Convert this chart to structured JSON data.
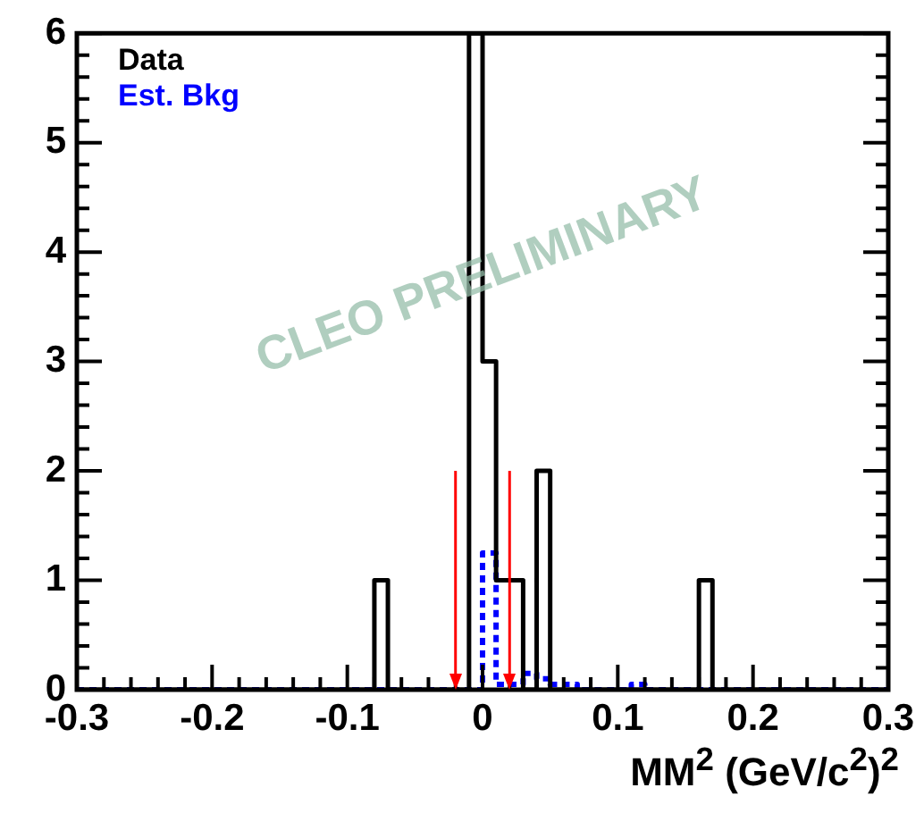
{
  "chart_data": {
    "type": "histogram",
    "xlabel": "MM$^{2}$ (GeV/c$^{2}$)$^{2}$",
    "bins": [
      -0.3,
      -0.29,
      -0.28,
      -0.27,
      -0.26,
      -0.25,
      -0.24,
      -0.23,
      -0.22,
      -0.21,
      -0.2,
      -0.19,
      -0.18,
      -0.17,
      -0.16,
      -0.15,
      -0.14,
      -0.13,
      -0.12,
      -0.11,
      -0.1,
      -0.09,
      -0.08,
      -0.07,
      -0.06,
      -0.05,
      -0.04,
      -0.03,
      -0.02,
      -0.01,
      0,
      0.01,
      0.02,
      0.03,
      0.04,
      0.05,
      0.06,
      0.07,
      0.08,
      0.09,
      0.1,
      0.11,
      0.12,
      0.13,
      0.14,
      0.15,
      0.16,
      0.17,
      0.18,
      0.19,
      0.2,
      0.21,
      0.22,
      0.23,
      0.24,
      0.25,
      0.26,
      0.27,
      0.28,
      0.29,
      0.3
    ],
    "series": [
      {
        "name": "Data",
        "color": "#000000",
        "line_style": "solid",
        "values": [
          0,
          0,
          0,
          0,
          0,
          0,
          0,
          0,
          0,
          0,
          0,
          0,
          0,
          0,
          0,
          0,
          0,
          0,
          0,
          0,
          0,
          0,
          1,
          0,
          0,
          0,
          0,
          0,
          0,
          6,
          3,
          1,
          1,
          0,
          2,
          0,
          0,
          0,
          0,
          0,
          0,
          0,
          0,
          0,
          0,
          0,
          1,
          0,
          0,
          0,
          0,
          0,
          0,
          0,
          0,
          0,
          0,
          0,
          0,
          0
        ]
      },
      {
        "name": "Est. Bkg",
        "color": "#0000ff",
        "line_style": "dashed",
        "values": [
          0,
          0,
          0,
          0,
          0,
          0,
          0,
          0,
          0,
          0,
          0,
          0,
          0,
          0,
          0,
          0,
          0,
          0,
          0,
          0,
          0,
          0,
          0,
          0,
          0,
          0,
          0,
          0,
          0,
          0,
          1.25,
          0.05,
          0.05,
          0.15,
          0.1,
          0.05,
          0.05,
          0,
          0,
          0,
          0,
          0.05,
          0,
          0,
          0,
          0,
          0,
          0,
          0,
          0,
          0,
          0,
          0,
          0,
          0,
          0,
          0,
          0,
          0,
          0
        ]
      }
    ],
    "xlim": [
      -0.3,
      0.3
    ],
    "xticks": [
      -0.3,
      -0.2,
      -0.1,
      0,
      0.1,
      0.2,
      0.3
    ],
    "ylim": [
      0,
      6
    ],
    "yticks": [
      0,
      1,
      2,
      3,
      4,
      5,
      6
    ],
    "ref_lines": [
      {
        "axis": "x",
        "value": -0.02,
        "color": "#ff0000"
      },
      {
        "axis": "x",
        "value": 0.02,
        "color": "#ff0000"
      }
    ],
    "legend": "top left",
    "grid": false,
    "annotations": [
      "CLEO PRELIMINARY"
    ]
  }
}
